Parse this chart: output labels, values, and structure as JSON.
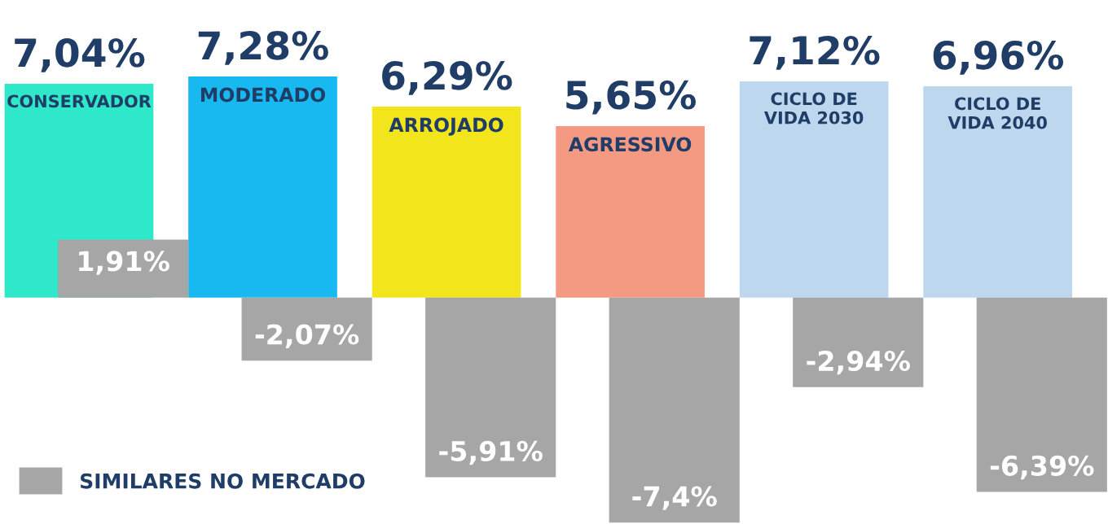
{
  "chart_data": {
    "type": "bar",
    "categories": [
      "CONSERVADOR",
      "MODERADO",
      "ARROJADO",
      "AGRESSIVO",
      "CICLO DE\nVIDA 2030",
      "CICLO DE\nVIDA 2040"
    ],
    "series": [
      {
        "colors": [
          "#2ee8c9",
          "#18b9f0",
          "#f2e51b",
          "#f59a82",
          "#bcd7ee",
          "#bcd7ee"
        ],
        "values": [
          7.04,
          7.28,
          6.29,
          5.65,
          7.12,
          6.96
        ],
        "value_labels": [
          "7,04%",
          "7,28%",
          "6,29%",
          "5,65%",
          "7,12%",
          "6,96%"
        ]
      },
      {
        "name": "SIMILARES NO MERCADO",
        "color": "#a6a6a6",
        "values": [
          1.91,
          -2.07,
          -5.91,
          -7.4,
          -2.94,
          -6.39
        ],
        "value_labels": [
          "1,91%",
          "-2,07%",
          "-5,91%",
          "-7,4%",
          "-2,94%",
          "-6,39%"
        ]
      }
    ],
    "ylim": [
      -7.45,
      9.8
    ],
    "tick_labels": false,
    "legend": "bottom left"
  }
}
